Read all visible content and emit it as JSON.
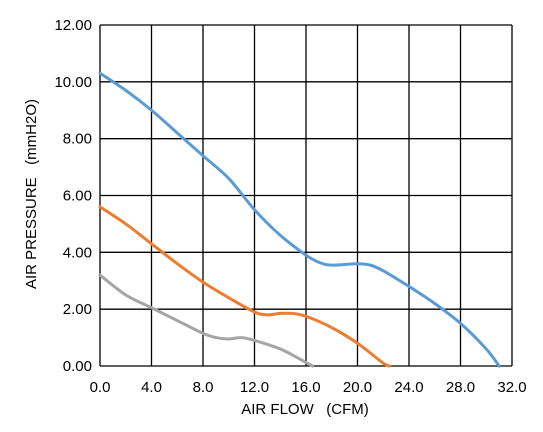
{
  "chart_data": {
    "type": "line",
    "title": "",
    "xlabel": "AIR FLOW   (CFM)",
    "ylabel": "AIR PRESSURE   (mmH2O)",
    "xlim": [
      0,
      32
    ],
    "ylim": [
      0,
      12
    ],
    "x_ticks": [
      "0.0",
      "4.0",
      "8.0",
      "12.0",
      "16.0",
      "20.0",
      "24.0",
      "28.0",
      "32.0"
    ],
    "y_ticks": [
      "0.00",
      "2.00",
      "4.00",
      "6.00",
      "8.00",
      "10.00",
      "12.00"
    ],
    "grid": true,
    "legend": "none",
    "series": [
      {
        "color": "#5b9bd5",
        "points": [
          [
            0,
            10.3
          ],
          [
            2,
            9.7
          ],
          [
            4,
            9.0
          ],
          [
            6,
            8.2
          ],
          [
            8,
            7.4
          ],
          [
            10,
            6.6
          ],
          [
            12,
            5.5
          ],
          [
            14,
            4.6
          ],
          [
            16,
            3.9
          ],
          [
            17,
            3.65
          ],
          [
            18,
            3.55
          ],
          [
            20,
            3.6
          ],
          [
            21,
            3.55
          ],
          [
            22,
            3.35
          ],
          [
            24,
            2.8
          ],
          [
            26,
            2.2
          ],
          [
            28,
            1.5
          ],
          [
            30,
            0.6
          ],
          [
            31,
            0
          ]
        ]
      },
      {
        "color": "#ed7d31",
        "points": [
          [
            0,
            5.6
          ],
          [
            2,
            5.0
          ],
          [
            4,
            4.3
          ],
          [
            6,
            3.6
          ],
          [
            8,
            2.95
          ],
          [
            10,
            2.4
          ],
          [
            12,
            1.9
          ],
          [
            13,
            1.8
          ],
          [
            14,
            1.85
          ],
          [
            15,
            1.85
          ],
          [
            16,
            1.75
          ],
          [
            18,
            1.35
          ],
          [
            20,
            0.8
          ],
          [
            22,
            0.1
          ],
          [
            22.5,
            0
          ]
        ]
      },
      {
        "color": "#a5a5a5",
        "points": [
          [
            0,
            3.2
          ],
          [
            2,
            2.5
          ],
          [
            4,
            2.05
          ],
          [
            6,
            1.6
          ],
          [
            8,
            1.15
          ],
          [
            9,
            1.0
          ],
          [
            10,
            0.95
          ],
          [
            11,
            1.0
          ],
          [
            12,
            0.9
          ],
          [
            14,
            0.6
          ],
          [
            15.5,
            0.25
          ],
          [
            16.5,
            0
          ]
        ]
      }
    ]
  }
}
